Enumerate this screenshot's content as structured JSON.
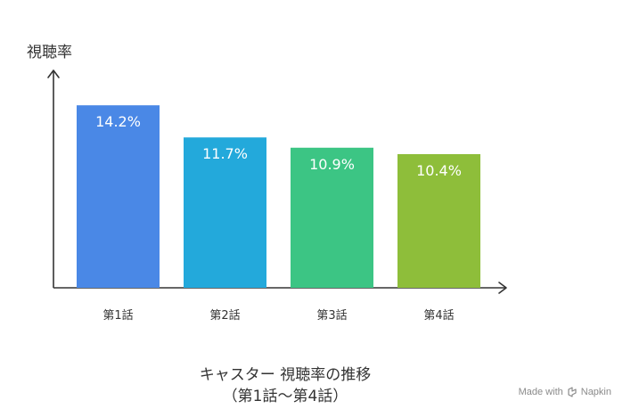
{
  "chart_data": {
    "type": "bar",
    "title": "キャスター 視聴率の推移",
    "subtitle": "（第1話〜第4話）",
    "ylabel": "視聴率",
    "xlabel": "",
    "categories": [
      "第1話",
      "第2話",
      "第3話",
      "第4話"
    ],
    "values": [
      14.2,
      11.7,
      10.9,
      10.4
    ],
    "data_labels": [
      "14.2%",
      "11.7%",
      "10.9%",
      "10.4%"
    ],
    "colors": [
      "#4A88E6",
      "#23A9DB",
      "#3CC584",
      "#8EBE3A"
    ],
    "ylim": [
      0,
      16.5
    ],
    "grid": false,
    "legend": "none"
  },
  "footer": {
    "credit_prefix": "Made with",
    "credit_brand": "Napkin",
    "brand_icon": "napkin-logo-icon"
  }
}
